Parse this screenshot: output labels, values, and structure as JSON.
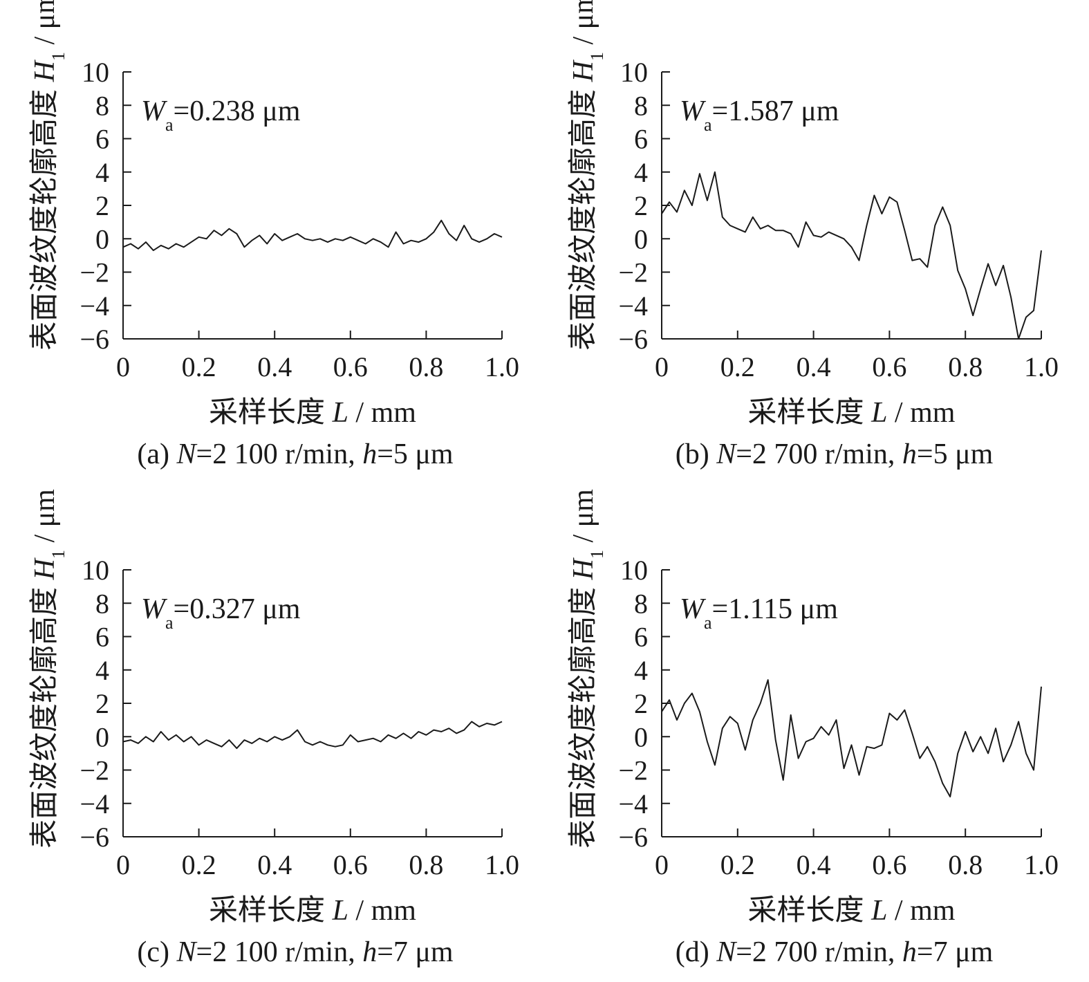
{
  "chart_data": [
    {
      "type": "line",
      "caption": "(a) N=2 100 r/min, h=5 μm",
      "annotation": "Wa=0.238 μm",
      "xlabel": "采样长度 L / mm",
      "ylabel": "表面波纹度轮廓高度 H1 / μm",
      "xlim": [
        0,
        1.0
      ],
      "ylim": [
        -6,
        10
      ],
      "xticks": [
        "0",
        "0.2",
        "0.4",
        "0.6",
        "0.8",
        "1.0"
      ],
      "yticks": [
        "10",
        "8",
        "6",
        "4",
        "2",
        "0",
        "−2",
        "−4",
        "−6"
      ],
      "x": [
        0,
        0.02,
        0.04,
        0.06,
        0.08,
        0.1,
        0.12,
        0.14,
        0.16,
        0.18,
        0.2,
        0.22,
        0.24,
        0.26,
        0.28,
        0.3,
        0.32,
        0.34,
        0.36,
        0.38,
        0.4,
        0.42,
        0.44,
        0.46,
        0.48,
        0.5,
        0.52,
        0.54,
        0.56,
        0.58,
        0.6,
        0.62,
        0.64,
        0.66,
        0.68,
        0.7,
        0.72,
        0.74,
        0.76,
        0.78,
        0.8,
        0.82,
        0.84,
        0.86,
        0.88,
        0.9,
        0.92,
        0.94,
        0.96,
        0.98,
        1.0
      ],
      "values": [
        -0.5,
        -0.3,
        -0.6,
        -0.2,
        -0.7,
        -0.4,
        -0.6,
        -0.3,
        -0.5,
        -0.2,
        0.1,
        0.0,
        0.5,
        0.2,
        0.6,
        0.3,
        -0.5,
        -0.1,
        0.2,
        -0.3,
        0.3,
        -0.1,
        0.1,
        0.3,
        0.0,
        -0.1,
        0.0,
        -0.2,
        0.0,
        -0.1,
        0.1,
        -0.1,
        -0.3,
        0.0,
        -0.2,
        -0.5,
        0.4,
        -0.3,
        -0.1,
        -0.2,
        0.0,
        0.4,
        1.1,
        0.3,
        -0.1,
        0.8,
        0.0,
        -0.2,
        0.0,
        0.3,
        0.1
      ]
    },
    {
      "type": "line",
      "caption": "(b) N=2 700 r/min, h=5 μm",
      "annotation": "Wa=1.587 μm",
      "xlabel": "采样长度 L / mm",
      "ylabel": "表面波纹度轮廓高度 H1 / μm",
      "xlim": [
        0,
        1.0
      ],
      "ylim": [
        -6,
        10
      ],
      "xticks": [
        "0",
        "0.2",
        "0.4",
        "0.6",
        "0.8",
        "1.0"
      ],
      "yticks": [
        "10",
        "8",
        "6",
        "4",
        "2",
        "0",
        "−2",
        "−4",
        "−6"
      ],
      "x": [
        0,
        0.02,
        0.04,
        0.06,
        0.08,
        0.1,
        0.12,
        0.14,
        0.16,
        0.18,
        0.2,
        0.22,
        0.24,
        0.26,
        0.28,
        0.3,
        0.32,
        0.34,
        0.36,
        0.38,
        0.4,
        0.42,
        0.44,
        0.46,
        0.48,
        0.5,
        0.52,
        0.54,
        0.56,
        0.58,
        0.6,
        0.62,
        0.64,
        0.66,
        0.68,
        0.7,
        0.72,
        0.74,
        0.76,
        0.78,
        0.8,
        0.82,
        0.84,
        0.86,
        0.88,
        0.9,
        0.92,
        0.94,
        0.96,
        0.98,
        1.0
      ],
      "values": [
        1.5,
        2.2,
        1.6,
        2.9,
        2.0,
        3.9,
        2.3,
        4.0,
        1.3,
        0.8,
        0.6,
        0.4,
        1.3,
        0.6,
        0.8,
        0.5,
        0.5,
        0.3,
        -0.5,
        1.0,
        0.2,
        0.1,
        0.4,
        0.2,
        0.0,
        -0.5,
        -1.3,
        0.8,
        2.6,
        1.5,
        2.5,
        2.2,
        0.5,
        -1.3,
        -1.2,
        -1.7,
        0.8,
        1.9,
        0.8,
        -1.9,
        -3.0,
        -4.6,
        -3.0,
        -1.5,
        -2.8,
        -1.6,
        -3.5,
        -6.0,
        -4.7,
        -4.3,
        -0.7
      ]
    },
    {
      "type": "line",
      "caption": "(c) N=2 100 r/min, h=7 μm",
      "annotation": "Wa=0.327 μm",
      "xlabel": "采样长度 L / mm",
      "ylabel": "表面波纹度轮廓高度 H1 / μm",
      "xlim": [
        0,
        1.0
      ],
      "ylim": [
        -6,
        10
      ],
      "xticks": [
        "0",
        "0.2",
        "0.4",
        "0.6",
        "0.8",
        "1.0"
      ],
      "yticks": [
        "10",
        "8",
        "6",
        "4",
        "2",
        "0",
        "−2",
        "−4",
        "−6"
      ],
      "x": [
        0,
        0.02,
        0.04,
        0.06,
        0.08,
        0.1,
        0.12,
        0.14,
        0.16,
        0.18,
        0.2,
        0.22,
        0.24,
        0.26,
        0.28,
        0.3,
        0.32,
        0.34,
        0.36,
        0.38,
        0.4,
        0.42,
        0.44,
        0.46,
        0.48,
        0.5,
        0.52,
        0.54,
        0.56,
        0.58,
        0.6,
        0.62,
        0.64,
        0.66,
        0.68,
        0.7,
        0.72,
        0.74,
        0.76,
        0.78,
        0.8,
        0.82,
        0.84,
        0.86,
        0.88,
        0.9,
        0.92,
        0.94,
        0.96,
        0.98,
        1.0
      ],
      "values": [
        -0.3,
        -0.2,
        -0.4,
        0.0,
        -0.3,
        0.3,
        -0.2,
        0.1,
        -0.3,
        0.0,
        -0.5,
        -0.2,
        -0.4,
        -0.6,
        -0.2,
        -0.7,
        -0.2,
        -0.4,
        -0.1,
        -0.3,
        0.0,
        -0.2,
        0.0,
        0.4,
        -0.3,
        -0.5,
        -0.3,
        -0.5,
        -0.6,
        -0.5,
        0.1,
        -0.3,
        -0.2,
        -0.1,
        -0.3,
        0.1,
        -0.1,
        0.2,
        -0.1,
        0.3,
        0.1,
        0.4,
        0.3,
        0.5,
        0.2,
        0.4,
        0.9,
        0.6,
        0.8,
        0.7,
        0.9
      ]
    },
    {
      "type": "line",
      "caption": "(d) N=2 700 r/min, h=7 μm",
      "annotation": "Wa=1.115 μm",
      "xlabel": "采样长度 L / mm",
      "ylabel": "表面波纹度轮廓高度 H1 / μm",
      "xlim": [
        0,
        1.0
      ],
      "ylim": [
        -6,
        10
      ],
      "xticks": [
        "0",
        "0.2",
        "0.4",
        "0.6",
        "0.8",
        "1.0"
      ],
      "yticks": [
        "10",
        "8",
        "6",
        "4",
        "2",
        "0",
        "−2",
        "−4",
        "−6"
      ],
      "x": [
        0,
        0.02,
        0.04,
        0.06,
        0.08,
        0.1,
        0.12,
        0.14,
        0.16,
        0.18,
        0.2,
        0.22,
        0.24,
        0.26,
        0.28,
        0.3,
        0.32,
        0.34,
        0.36,
        0.38,
        0.4,
        0.42,
        0.44,
        0.46,
        0.48,
        0.5,
        0.52,
        0.54,
        0.56,
        0.58,
        0.6,
        0.62,
        0.64,
        0.66,
        0.68,
        0.7,
        0.72,
        0.74,
        0.76,
        0.78,
        0.8,
        0.82,
        0.84,
        0.86,
        0.88,
        0.9,
        0.92,
        0.94,
        0.96,
        0.98,
        1.0
      ],
      "values": [
        1.5,
        2.2,
        1.0,
        2.0,
        2.6,
        1.5,
        -0.3,
        -1.7,
        0.5,
        1.2,
        0.8,
        -0.8,
        1.0,
        2.0,
        3.4,
        -0.2,
        -2.6,
        1.3,
        -1.3,
        -0.3,
        -0.1,
        0.6,
        0.1,
        1.0,
        -1.9,
        -0.5,
        -2.3,
        -0.6,
        -0.7,
        -0.5,
        1.4,
        1.0,
        1.6,
        0.2,
        -1.3,
        -0.6,
        -1.5,
        -2.8,
        -3.6,
        -1.0,
        0.3,
        -0.9,
        0.0,
        -1.0,
        0.5,
        -1.5,
        -0.5,
        0.9,
        -1.0,
        -2.0,
        3.0
      ]
    }
  ]
}
